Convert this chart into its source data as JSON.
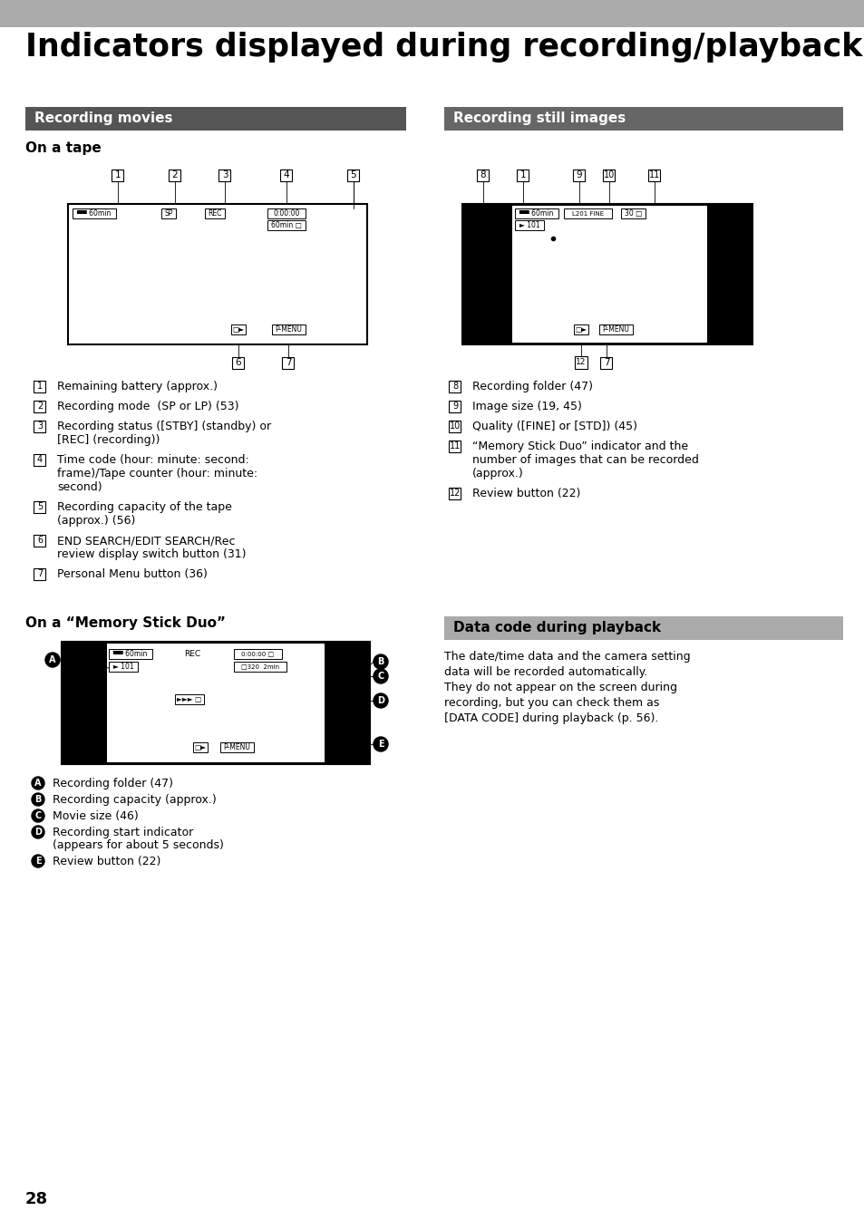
{
  "page_num": "28",
  "title": "Indicators displayed during recording/playback",
  "bg_color": "#ffffff",
  "top_bar_color": "#999999",
  "section_left_color": "#555555",
  "section_right_color": "#666666",
  "data_code_bar_color": "#999999",
  "items_left": [
    [
      "1",
      "Remaining battery (approx.)"
    ],
    [
      "2",
      "Recording mode  (SP or LP) (53)"
    ],
    [
      "3",
      "Recording status ([STBY] (standby) or\n[REC] (recording))"
    ],
    [
      "4",
      "Time code (hour: minute: second:\nframe)/Tape counter (hour: minute:\nsecond)"
    ],
    [
      "5",
      "Recording capacity of the tape\n(approx.) (56)"
    ],
    [
      "6",
      "END SEARCH/EDIT SEARCH/Rec\nreview display switch button (31)"
    ],
    [
      "7",
      "Personal Menu button (36)"
    ]
  ],
  "items_right": [
    [
      "8",
      "Recording folder (47)"
    ],
    [
      "9",
      "Image size (19, 45)"
    ],
    [
      "10",
      "Quality ([FINE] or [STD]) (45)"
    ],
    [
      "11",
      "“Memory Stick Duo” indicator and the\nnumber of images that can be recorded\n(approx.)"
    ],
    [
      "12",
      "Review button (22)"
    ]
  ],
  "items_memory": [
    [
      "A",
      "Recording folder (47)"
    ],
    [
      "B",
      "Recording capacity (approx.)"
    ],
    [
      "C",
      "Movie size (46)"
    ],
    [
      "D",
      "Recording start indicator\n(appears for about 5 seconds)"
    ],
    [
      "E",
      "Review button (22)"
    ]
  ],
  "data_code_text": "The date/time data and the camera setting\ndata will be recorded automatically.\nThey do not appear on the screen during\nrecording, but you can check them as\n[DATA CODE] during playback (p. 56)."
}
